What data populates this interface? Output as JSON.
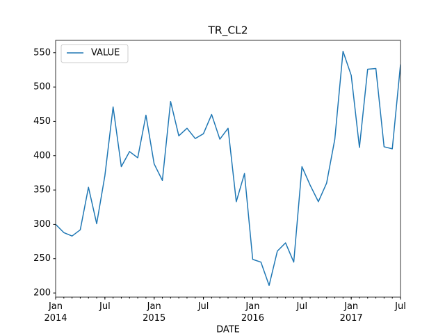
{
  "chart_data": {
    "type": "line",
    "title": "TR_CL2",
    "xlabel": "DATE",
    "x": [
      "2014-01",
      "2014-02",
      "2014-03",
      "2014-04",
      "2014-05",
      "2014-06",
      "2014-07",
      "2014-08",
      "2014-09",
      "2014-10",
      "2014-11",
      "2014-12",
      "2015-01",
      "2015-02",
      "2015-03",
      "2015-04",
      "2015-05",
      "2015-06",
      "2015-07",
      "2015-08",
      "2015-09",
      "2015-10",
      "2015-11",
      "2015-12",
      "2016-01",
      "2016-02",
      "2016-03",
      "2016-04",
      "2016-05",
      "2016-06",
      "2016-07",
      "2016-08",
      "2016-09",
      "2016-10",
      "2016-11",
      "2016-12",
      "2017-01",
      "2017-02",
      "2017-03",
      "2017-04",
      "2017-05",
      "2017-06",
      "2017-07"
    ],
    "series": [
      {
        "name": "VALUE",
        "color": "#1f77b4",
        "values": [
          300,
          288,
          283,
          292,
          354,
          301,
          371,
          471,
          384,
          406,
          397,
          459,
          388,
          364,
          479,
          429,
          440,
          425,
          432,
          460,
          424,
          440,
          333,
          374,
          249,
          245,
          211,
          261,
          273,
          245,
          384,
          357,
          333,
          360,
          424,
          552,
          517,
          412,
          526,
          527,
          413,
          410,
          533
        ]
      }
    ],
    "xlim": [
      "2014-01",
      "2017-07"
    ],
    "xticks": [
      {
        "value": "2014-01",
        "label": "Jan\n2014"
      },
      {
        "value": "2014-07",
        "label": "Jul"
      },
      {
        "value": "2015-01",
        "label": "Jan\n2015"
      },
      {
        "value": "2015-07",
        "label": "Jul"
      },
      {
        "value": "2016-01",
        "label": "Jan\n2016"
      },
      {
        "value": "2016-07",
        "label": "Jul"
      },
      {
        "value": "2017-01",
        "label": "Jan\n2017"
      },
      {
        "value": "2017-07",
        "label": "Jul"
      }
    ],
    "ylim": [
      194,
      568
    ],
    "yticks": [
      200,
      250,
      300,
      350,
      400,
      450,
      500,
      550
    ],
    "legend": "upper left"
  }
}
